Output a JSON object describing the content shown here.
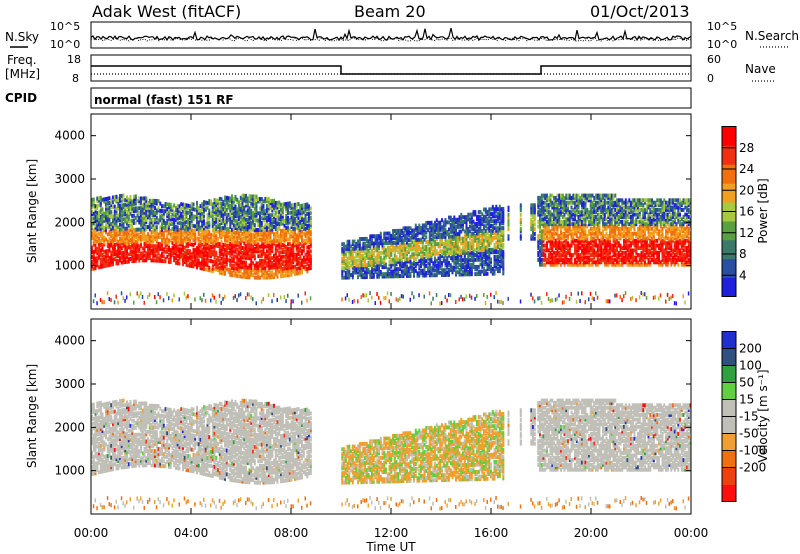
{
  "header": {
    "title": "Adak West (fitACF)",
    "beam": "Beam 20",
    "date": "01/Oct/2013"
  },
  "noise_panel": {
    "left_label": "N.Sky",
    "right_label": "N.Search",
    "left_ticks": [
      "10^5",
      "10^0"
    ],
    "right_ticks": [
      "10^5",
      "10^0"
    ]
  },
  "freq_panel": {
    "left_label_line1": "Freq.",
    "left_label_line2": "[MHz]",
    "left_ticks": [
      "18",
      "8"
    ],
    "right_ticks": [
      "60",
      "0"
    ],
    "right_label": "Nave",
    "cpid_label": "CPID",
    "mode_text": "normal (fast) 151 RF"
  },
  "colors": {
    "power_scale": [
      "#2020e0",
      "#2a4fa0",
      "#3a7a6a",
      "#5aa040",
      "#a8c840",
      "#f0a020",
      "#f07010",
      "#f03010",
      "#ff0000"
    ],
    "velocity_scale": [
      "#ff1010",
      "#f04010",
      "#f07010",
      "#f0a030",
      "#c0c0b8",
      "#c0c0b8",
      "#60d040",
      "#30a040",
      "#305080",
      "#2030d0"
    ]
  },
  "chart_data": [
    {
      "type": "heatmap",
      "name": "power",
      "ylabel": "Slant Range [km]",
      "yticks": [
        "1000",
        "2000",
        "3000",
        "4000"
      ],
      "ylim": [
        0,
        4500
      ],
      "colorbar_label": "Power [dB]",
      "colorbar_ticks": [
        "4",
        "8",
        "12",
        "16",
        "20",
        "24",
        "28"
      ],
      "colorbar_range": [
        0,
        32
      ]
    },
    {
      "type": "heatmap",
      "name": "velocity",
      "ylabel": "Slant Range [km]",
      "yticks": [
        "1000",
        "2000",
        "3000",
        "4000"
      ],
      "ylim": [
        0,
        4500
      ],
      "colorbar_label": "Velocity [m s⁻¹]",
      "colorbar_ticks": [
        "200",
        "100",
        "50",
        "15",
        "-15",
        "-50",
        "-100",
        "-200"
      ],
      "xlabel": "Time UT",
      "xticks": [
        "00:00",
        "04:00",
        "08:00",
        "12:00",
        "16:00",
        "20:00",
        "00:00"
      ],
      "xlim_hours": [
        0,
        24
      ]
    }
  ]
}
